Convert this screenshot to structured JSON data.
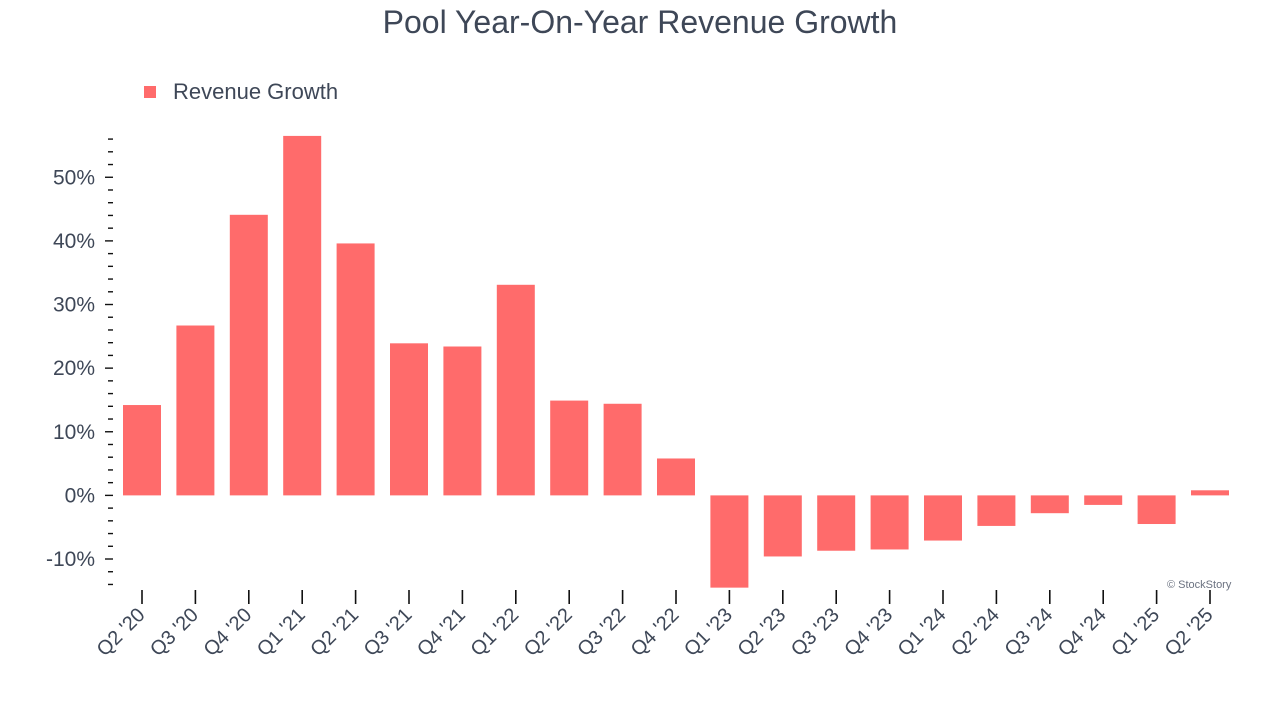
{
  "chart_data": {
    "type": "bar",
    "title": "Pool Year-On-Year Revenue Growth",
    "xlabel": "",
    "ylabel": "",
    "ylim": [
      -15.5,
      56.8
    ],
    "yticks": [
      -10,
      0,
      10,
      20,
      30,
      40,
      50
    ],
    "ytick_labels": [
      "-10%",
      "0%",
      "10%",
      "20%",
      "30%",
      "40%",
      "50%"
    ],
    "grid": false,
    "legend_position": "top-left",
    "categories": [
      "Q2 '20",
      "Q3 '20",
      "Q4 '20",
      "Q1 '21",
      "Q2 '21",
      "Q3 '21",
      "Q4 '21",
      "Q1 '22",
      "Q2 '22",
      "Q3 '22",
      "Q4 '22",
      "Q1 '23",
      "Q2 '23",
      "Q3 '23",
      "Q4 '23",
      "Q1 '24",
      "Q2 '24",
      "Q3 '24",
      "Q4 '24",
      "Q1 '25",
      "Q2 '25"
    ],
    "series": [
      {
        "name": "Revenue Growth",
        "color": "#ff6b6b",
        "values": [
          14.2,
          26.7,
          44.1,
          56.5,
          39.6,
          23.9,
          23.4,
          33.1,
          14.9,
          14.4,
          5.8,
          -14.5,
          -9.6,
          -8.7,
          -8.5,
          -7.1,
          -4.8,
          -2.8,
          -1.5,
          -4.5,
          0.8
        ]
      }
    ]
  },
  "watermark": "© StockStory"
}
